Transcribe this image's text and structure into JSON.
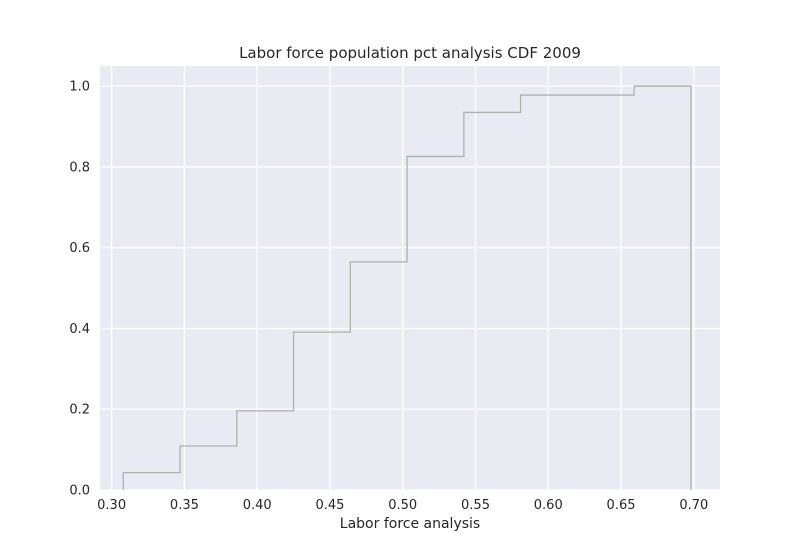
{
  "chart_data": {
    "type": "step",
    "title": "Labor force population pct analysis CDF 2009",
    "xlabel": "Labor force analysis",
    "ylabel": "",
    "xlim": [
      0.292,
      0.718
    ],
    "ylim": [
      0.0,
      1.05
    ],
    "xticks": [
      0.3,
      0.35,
      0.4,
      0.45,
      0.5,
      0.55,
      0.6,
      0.65,
      0.7
    ],
    "xtick_labels": [
      "0.30",
      "0.35",
      "0.40",
      "0.45",
      "0.50",
      "0.55",
      "0.60",
      "0.65",
      "0.70"
    ],
    "yticks": [
      0.0,
      0.2,
      0.4,
      0.6,
      0.8,
      1.0
    ],
    "ytick_labels": [
      "0.0",
      "0.2",
      "0.4",
      "0.6",
      "0.8",
      "1.0"
    ],
    "grid": true,
    "background": "#eaeaf2",
    "grid_color": "#ffffff",
    "line_color": "#b0b0b0",
    "series": [
      {
        "x": [
          0.308,
          0.347,
          0.386,
          0.425,
          0.464,
          0.503,
          0.542,
          0.581,
          0.62,
          0.659,
          0.698
        ],
        "y": [
          0.0,
          0.043,
          0.109,
          0.196,
          0.391,
          0.565,
          0.826,
          0.935,
          0.978,
          0.978,
          1.0
        ]
      }
    ]
  }
}
